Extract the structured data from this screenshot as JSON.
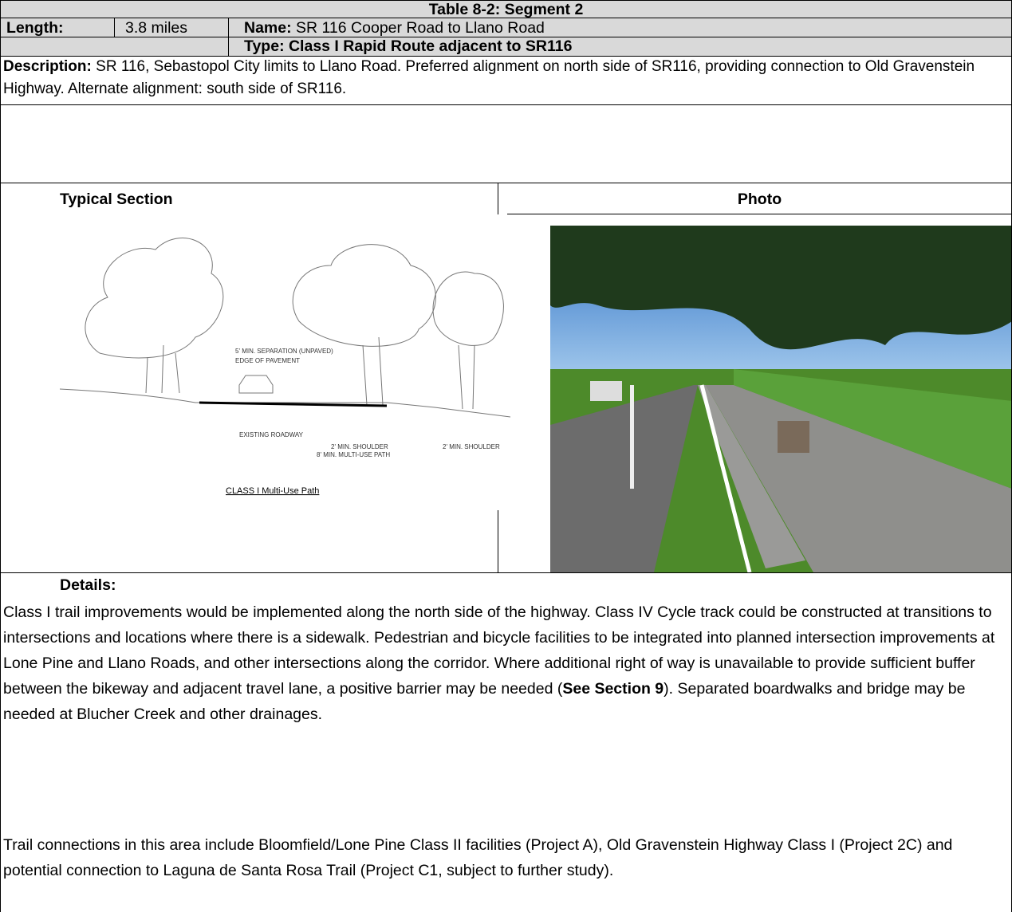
{
  "header": {
    "title": "Table 8-2: Segment 2"
  },
  "segment": {
    "length_label": "Length:",
    "length": "3.8 miles",
    "name_label": "Name:",
    "name": "SR 116 Cooper Road to Llano Road",
    "type": "Type: Class I Rapid Route adjacent to SR116"
  },
  "description": {
    "label": "Description:",
    "text": "SR 116, Sebastopol City limits to Llano Road.  Preferred alignment on north side of SR116, providing connection to Old Gravenstein Highway.  Alternate alignment: south side of SR116."
  },
  "columns": {
    "section": "Typical Section",
    "photo": "Photo"
  },
  "diagram": {
    "labels": [
      "5' MIN. SEPARATION (UNPAVED)",
      "EDGE OF PAVEMENT",
      "EXISTING ROADWAY",
      "2' MIN. SHOULDER",
      "8' MIN. MULTI-USE PATH",
      "2' MIN. SHOULDER"
    ],
    "caption": "CLASS I Multi-Use Path"
  },
  "details": {
    "label": "Details:",
    "paragraphs": [
      [
        "Class I trail improvements would be implemented along the north side of the highway.  Class IV Cycle track could be constructed at transitions to intersections and locations where there is a sidewalk.  Pedestrian and bicycle facilities to be integrated into planned intersection improvements at Lone Pine and Llano Roads, and other intersections along the corridor.  Where additional right of way is unavailable to provide sufficient buffer between the bikeway and adjacent travel lane, a positive barrier may be needed (",
        "See Section 9",
        "). Separated boardwalks and bridge may be needed at Blucher Creek and other drainages."
      ],
      [
        "Trail connections in this area include Bloomfield/Lone Pine Class II facilities (Project A), Old Gravenstein Highway Class I (Project 2C) and potential connection to Laguna de Santa Rosa Trail (Project C1, subject to further study)."
      ]
    ]
  }
}
